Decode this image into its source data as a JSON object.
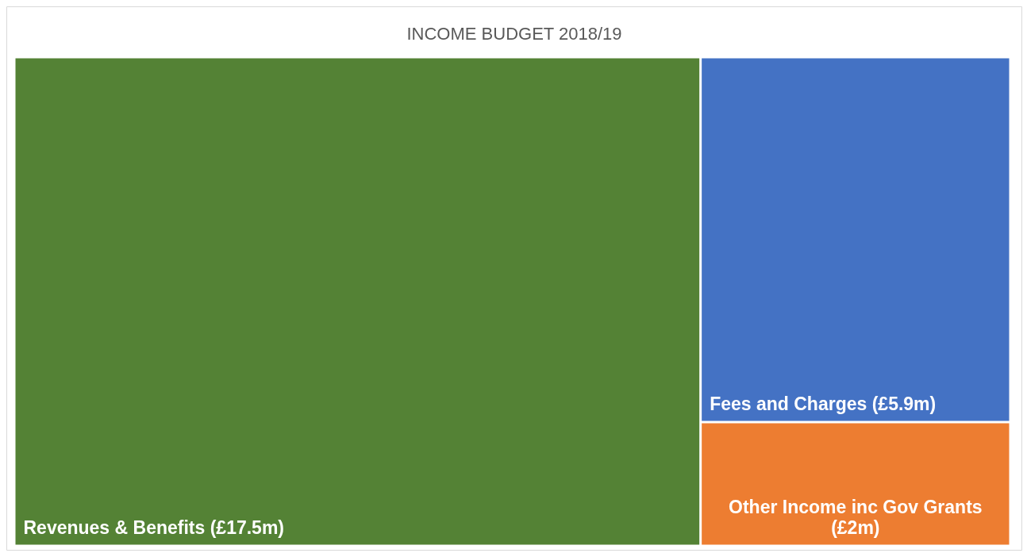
{
  "chart_data": {
    "type": "other",
    "title": "INCOME BUDGET 2018/19",
    "categories": [
      "Revenues & Benefits",
      "Fees and Charges",
      "Other Income inc Gov Grants"
    ],
    "values": [
      17.5,
      5.9,
      2
    ],
    "value_labels": [
      "(£17.5m)",
      "(£5.9m)",
      "(£2m)"
    ],
    "colors": [
      "#548235",
      "#4472c4",
      "#ed7d31"
    ]
  }
}
